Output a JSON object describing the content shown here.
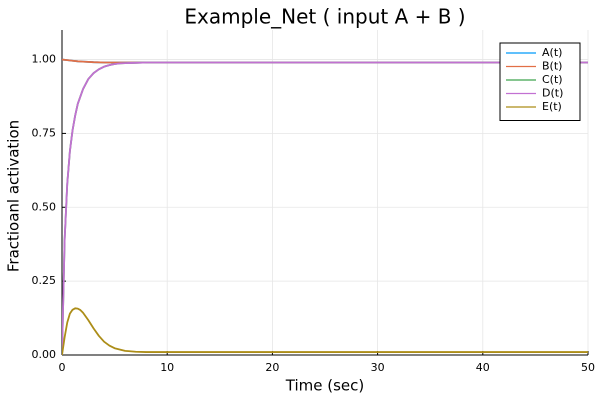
{
  "chart_data": {
    "type": "line",
    "title": "Example_Net ( input A + B )",
    "xlabel": "Time (sec)",
    "ylabel": "Fractioanl activation",
    "xlim": [
      0,
      50
    ],
    "ylim": [
      0,
      1.1
    ],
    "grid": true,
    "legend_position": "top-right",
    "xticks": [
      {
        "value": 0,
        "label": "0"
      },
      {
        "value": 10,
        "label": "10"
      },
      {
        "value": 20,
        "label": "20"
      },
      {
        "value": 30,
        "label": "30"
      },
      {
        "value": 40,
        "label": "40"
      },
      {
        "value": 50,
        "label": "50"
      }
    ],
    "yticks": [
      {
        "value": 0,
        "label": "0.00"
      },
      {
        "value": 0.25,
        "label": "0.25"
      },
      {
        "value": 0.5,
        "label": "0.50"
      },
      {
        "value": 0.75,
        "label": "0.75"
      },
      {
        "value": 1.0,
        "label": "1.00"
      }
    ],
    "series": [
      {
        "name": "A(t)",
        "color": "#009af9",
        "x": [
          0,
          0.5,
          1,
          1.5,
          2,
          3,
          4,
          6,
          8,
          10,
          20,
          30,
          40,
          50
        ],
        "y": [
          1.0,
          0.998,
          0.996,
          0.994,
          0.993,
          0.991,
          0.99,
          0.99,
          0.99,
          0.99,
          0.99,
          0.99,
          0.99,
          0.99
        ]
      },
      {
        "name": "B(t)",
        "color": "#e26f46",
        "x": [
          0,
          0.5,
          1,
          1.5,
          2,
          3,
          4,
          6,
          8,
          10,
          20,
          30,
          40,
          50
        ],
        "y": [
          1.0,
          0.998,
          0.996,
          0.994,
          0.993,
          0.991,
          0.99,
          0.99,
          0.99,
          0.99,
          0.99,
          0.99,
          0.99,
          0.99
        ]
      },
      {
        "name": "C(t)",
        "color": "#3da44d",
        "x": [
          0,
          0.25,
          0.5,
          0.75,
          1,
          1.25,
          1.5,
          2,
          2.5,
          3,
          3.5,
          4,
          4.5,
          5,
          5.5,
          6,
          7,
          8,
          10,
          20,
          30,
          40,
          50
        ],
        "y": [
          0,
          0.39,
          0.58,
          0.69,
          0.76,
          0.81,
          0.85,
          0.9,
          0.934,
          0.954,
          0.967,
          0.976,
          0.981,
          0.985,
          0.987,
          0.988,
          0.989,
          0.99,
          0.99,
          0.99,
          0.99,
          0.99,
          0.99
        ]
      },
      {
        "name": "D(t)",
        "color": "#c271d2",
        "x": [
          0,
          0.25,
          0.5,
          0.75,
          1,
          1.25,
          1.5,
          2,
          2.5,
          3,
          3.5,
          4,
          4.5,
          5,
          5.5,
          6,
          7,
          8,
          10,
          20,
          30,
          40,
          50
        ],
        "y": [
          0,
          0.39,
          0.58,
          0.69,
          0.76,
          0.81,
          0.85,
          0.9,
          0.934,
          0.954,
          0.967,
          0.976,
          0.981,
          0.985,
          0.987,
          0.988,
          0.989,
          0.99,
          0.99,
          0.99,
          0.99,
          0.99,
          0.99
        ]
      },
      {
        "name": "E(t)",
        "color": "#ac8d18",
        "x": [
          0,
          0.25,
          0.5,
          0.75,
          1,
          1.25,
          1.5,
          1.75,
          2,
          2.5,
          3,
          3.5,
          4,
          4.5,
          5,
          6,
          7,
          8,
          9,
          10,
          20,
          30,
          40,
          50
        ],
        "y": [
          0,
          0.06,
          0.11,
          0.14,
          0.153,
          0.158,
          0.157,
          0.152,
          0.143,
          0.118,
          0.09,
          0.065,
          0.045,
          0.032,
          0.023,
          0.014,
          0.011,
          0.01,
          0.01,
          0.01,
          0.01,
          0.01,
          0.01,
          0.01
        ]
      }
    ]
  }
}
